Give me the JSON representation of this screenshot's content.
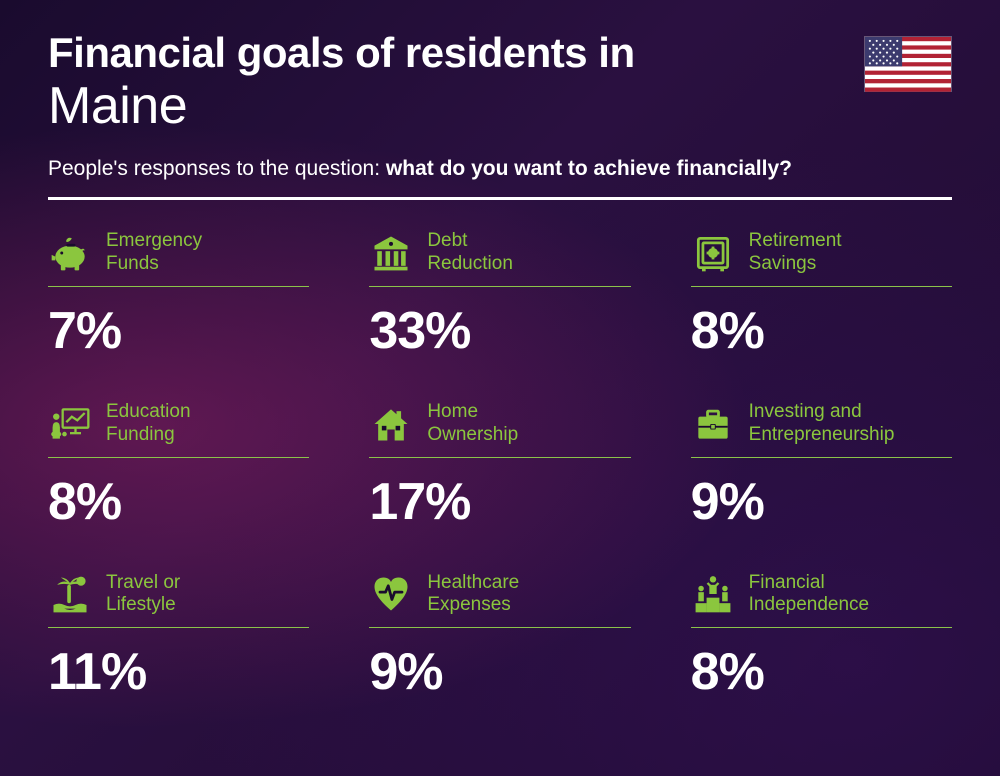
{
  "type": "infographic",
  "background_colors": [
    "#1a0b2e",
    "#2a1040",
    "#1e0a30"
  ],
  "accent_glow": "#c82878",
  "text_color": "#ffffff",
  "accent_color": "#8bc63e",
  "title_line1": "Financial goals of residents in",
  "title_line2": "Maine",
  "title_line1_fontsize": 42,
  "title_line1_weight": 800,
  "title_line2_fontsize": 52,
  "title_line2_weight": 300,
  "subtitle_prefix": "People's responses to the question: ",
  "subtitle_bold": "what do you want to achieve financially?",
  "subtitle_fontsize": 21,
  "divider_color": "#ffffff",
  "divider_height": 3,
  "flag": {
    "country": "USA",
    "stripe_red": "#b22234",
    "stripe_white": "#ffffff",
    "canton": "#3c3b6e"
  },
  "grid": {
    "cols": 3,
    "rows": 3,
    "col_gap": 60,
    "row_gap": 40
  },
  "label_fontsize": 19,
  "value_fontsize": 52,
  "value_weight": 800,
  "underline_color": "#8bc34a",
  "items": [
    {
      "icon": "piggy-bank-icon",
      "label": "Emergency Funds",
      "value": "7%"
    },
    {
      "icon": "bank-icon",
      "label": "Debt Reduction",
      "value": "33%"
    },
    {
      "icon": "safe-icon",
      "label": "Retirement Savings",
      "value": "8%"
    },
    {
      "icon": "presentation-icon",
      "label": "Education Funding",
      "value": "8%"
    },
    {
      "icon": "house-icon",
      "label": "Home Ownership",
      "value": "17%"
    },
    {
      "icon": "briefcase-icon",
      "label": "Investing and Entrepreneurship",
      "value": "9%"
    },
    {
      "icon": "palm-icon",
      "label": "Travel or Lifestyle",
      "value": "11%"
    },
    {
      "icon": "heart-pulse-icon",
      "label": "Healthcare Expenses",
      "value": "9%"
    },
    {
      "icon": "podium-icon",
      "label": "Financial Independence",
      "value": "8%"
    }
  ]
}
